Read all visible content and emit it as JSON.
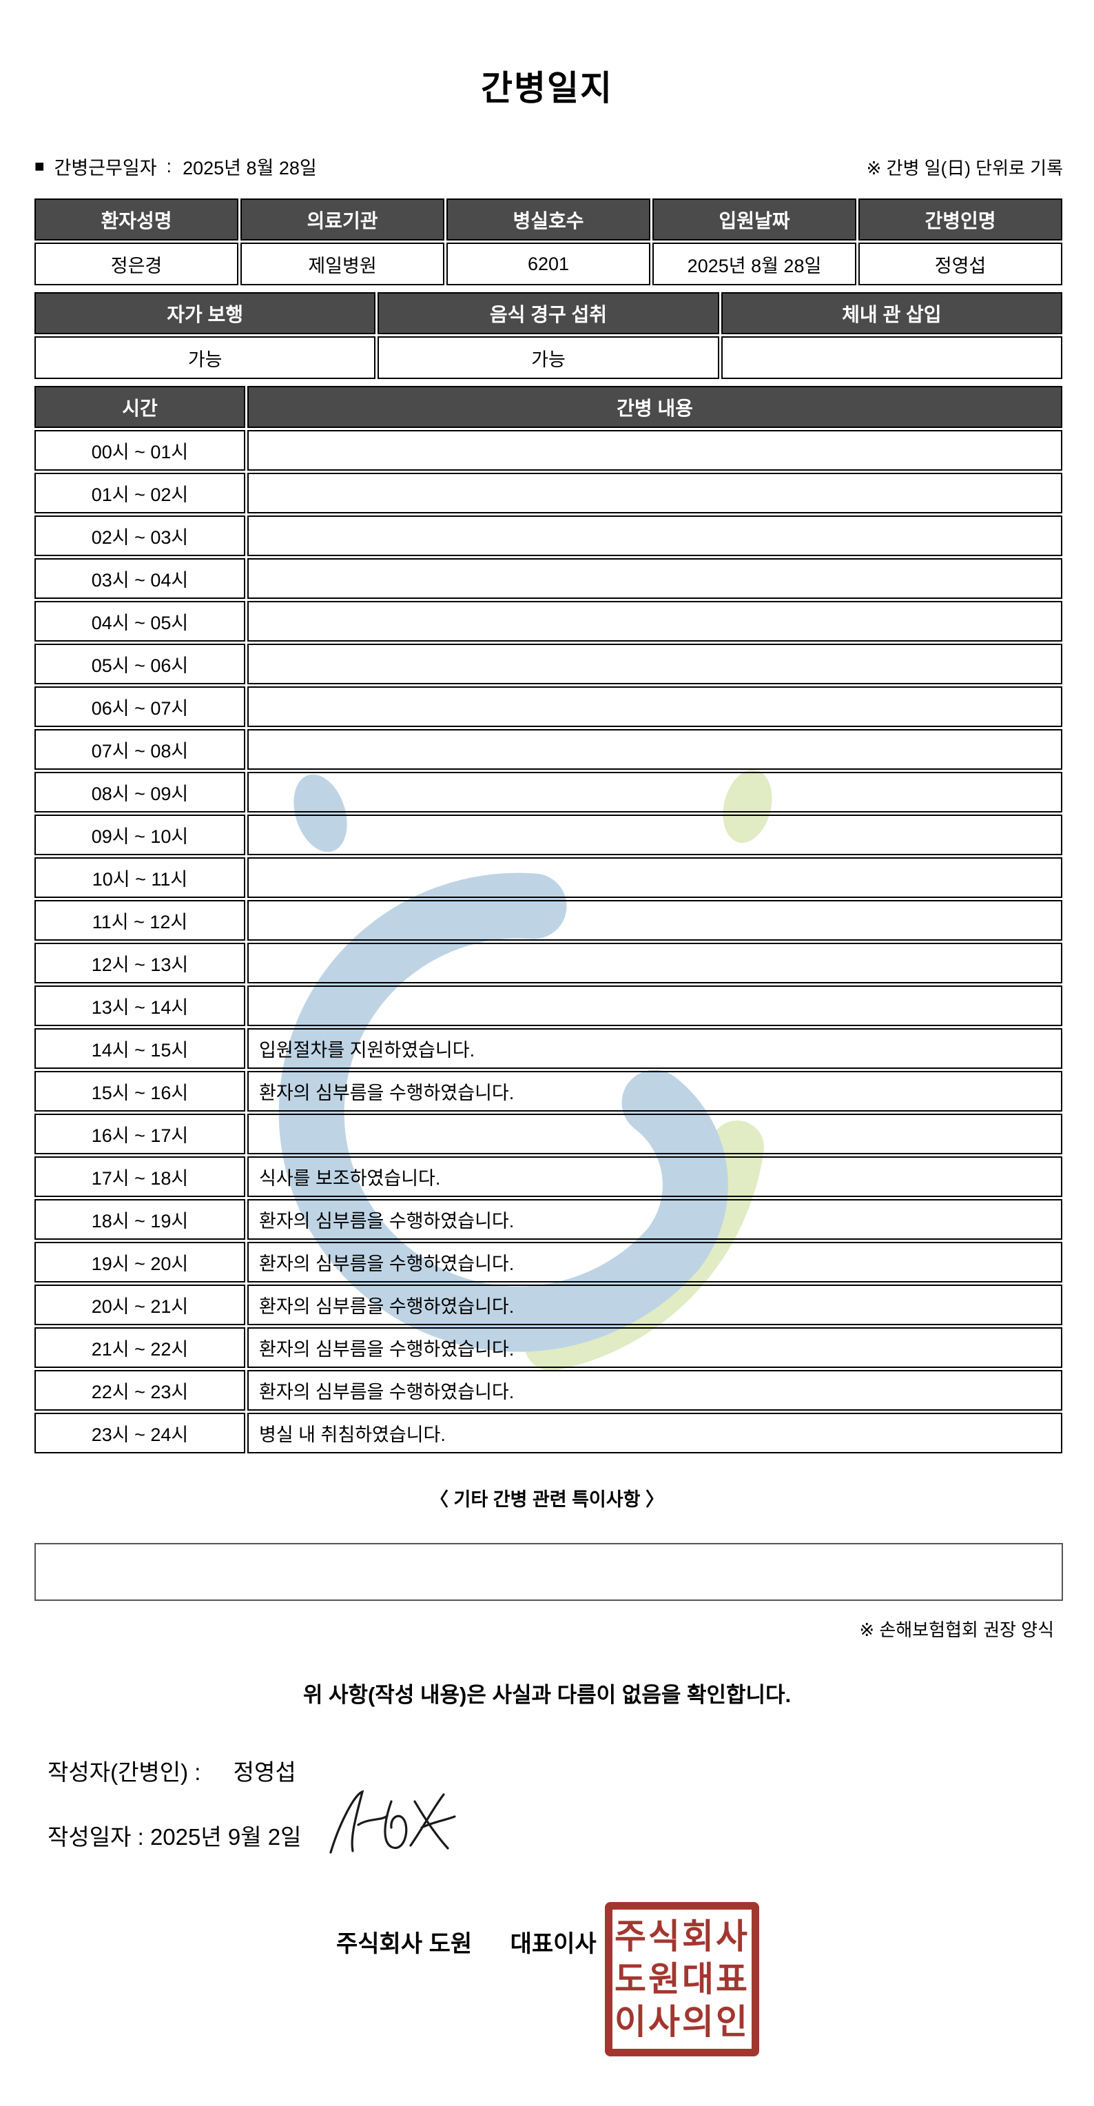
{
  "title": "간병일지",
  "meta": {
    "bullet": "■",
    "work_date_label": "간병근무일자",
    "colon": ":",
    "work_date_value": "2025년 8월 28일",
    "unit_note": "※ 간병 일(日) 단위로 기록"
  },
  "info_table": {
    "headers": [
      "환자성명",
      "의료기관",
      "병실호수",
      "입원날짜",
      "간병인명"
    ],
    "values": [
      "정은경",
      "제일병원",
      "6201",
      "2025년 8월 28일",
      "정영섭"
    ]
  },
  "condition_table": {
    "headers": [
      "자가 보행",
      "음식 경구 섭취",
      "체내 관 삽입"
    ],
    "values": [
      "가능",
      "가능",
      ""
    ]
  },
  "care_log": {
    "time_header": "시간",
    "content_header": "간병 내용",
    "rows": [
      {
        "time": "00시 ~ 01시",
        "content": ""
      },
      {
        "time": "01시 ~ 02시",
        "content": ""
      },
      {
        "time": "02시 ~ 03시",
        "content": ""
      },
      {
        "time": "03시 ~ 04시",
        "content": ""
      },
      {
        "time": "04시 ~ 05시",
        "content": ""
      },
      {
        "time": "05시 ~ 06시",
        "content": ""
      },
      {
        "time": "06시 ~ 07시",
        "content": ""
      },
      {
        "time": "07시 ~ 08시",
        "content": ""
      },
      {
        "time": "08시 ~ 09시",
        "content": ""
      },
      {
        "time": "09시 ~ 10시",
        "content": ""
      },
      {
        "time": "10시 ~ 11시",
        "content": ""
      },
      {
        "time": "11시 ~ 12시",
        "content": ""
      },
      {
        "time": "12시 ~ 13시",
        "content": ""
      },
      {
        "time": "13시 ~ 14시",
        "content": ""
      },
      {
        "time": "14시 ~ 15시",
        "content": "입원절차를 지원하였습니다."
      },
      {
        "time": "15시 ~ 16시",
        "content": "환자의 심부름을 수행하였습니다."
      },
      {
        "time": "16시 ~ 17시",
        "content": ""
      },
      {
        "time": "17시 ~ 18시",
        "content": "식사를 보조하였습니다."
      },
      {
        "time": "18시 ~ 19시",
        "content": "환자의 심부름을 수행하였습니다."
      },
      {
        "time": "19시 ~ 20시",
        "content": "환자의 심부름을 수행하였습니다."
      },
      {
        "time": "20시 ~ 21시",
        "content": "환자의 심부름을 수행하였습니다."
      },
      {
        "time": "21시 ~ 22시",
        "content": "환자의 심부름을 수행하였습니다."
      },
      {
        "time": "22시 ~ 23시",
        "content": "환자의 심부름을 수행하였습니다."
      },
      {
        "time": "23시 ~ 24시",
        "content": "병실 내 취침하였습니다."
      }
    ]
  },
  "notes": {
    "heading": "〈 기타 간병 관련 특이사항 〉",
    "content": "",
    "form_note": "※ 손해보험협회 권장 양식"
  },
  "confirmation": "위 사항(작성 내용)은 사실과 다름이 없음을 확인합니다.",
  "author": {
    "label": "작성자(간병인) :",
    "name": "정영섭"
  },
  "written_date": {
    "label": "작성일자 :",
    "value": "2025년 9월 2일"
  },
  "company": {
    "name": "주식회사 도원",
    "ceo_label": "대표이사",
    "seal_lines": [
      "주식회사",
      "도원대표",
      "이사의인"
    ],
    "seal_color": "#a23730"
  },
  "colors": {
    "header_bg": "#4b4b4b",
    "header_text": "#ffffff",
    "table_border": "#000000",
    "watermark_blue": "#b3cde1",
    "watermark_green": "#dce8ba",
    "seal_red": "#a23730"
  }
}
